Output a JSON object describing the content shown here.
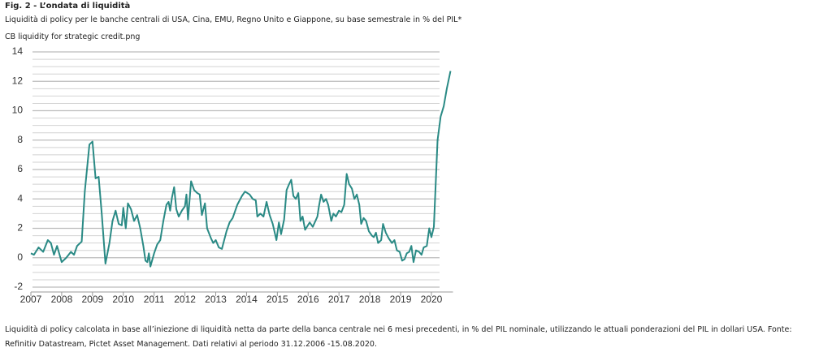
{
  "chart_data": {
    "type": "line",
    "title": "Fig. 2 - L’ondata di liquidità",
    "subtitle": "Liquidità di policy per le banche centrali di USA, Cina, EMU, Regno Unito e Giappone, su base semestrale in % del PIL*",
    "image_name": "CB liquidity for strategic credit.png",
    "footnote": "Liquidità di policy calcolata in base all’iniezione di liquidità netta da parte della banca centrale nei 6 mesi precedenti, in % del PIL nominale, utilizzando le attuali ponderazioni del PIL in dollari USA. Fonte: Refinitiv Datastream, Pictet Asset Management. Dati relativi al periodo 31.12.2006 -15.08.2020.",
    "xlim": [
      2007,
      2020.7
    ],
    "xticks": [
      2007,
      2008,
      2009,
      2010,
      2011,
      2012,
      2013,
      2014,
      2015,
      2016,
      2017,
      2018,
      2019,
      2020
    ],
    "ylim": [
      -2,
      14
    ],
    "yticks": [
      -2,
      0,
      2,
      4,
      6,
      8,
      10,
      12,
      14
    ],
    "minor_yticks": [
      -1.5,
      -1,
      -0.5,
      0.5,
      1,
      1.5,
      2.5,
      3,
      3.5,
      4.5,
      5,
      5.5,
      6.5,
      7,
      7.5,
      8.5,
      9,
      9.5,
      10.5,
      11,
      11.5,
      12.5,
      13,
      13.5
    ],
    "grid": true,
    "series": [
      {
        "color": "#2a8a85",
        "x": [
          2007.0,
          2007.1,
          2007.25,
          2007.4,
          2007.55,
          2007.65,
          2007.75,
          2007.85,
          2008.0,
          2008.15,
          2008.3,
          2008.4,
          2008.5,
          2008.65,
          2008.75,
          2008.9,
          2009.0,
          2009.1,
          2009.2,
          2009.3,
          2009.42,
          2009.55,
          2009.65,
          2009.75,
          2009.85,
          2009.95,
          2010.0,
          2010.08,
          2010.15,
          2010.25,
          2010.35,
          2010.45,
          2010.55,
          2010.65,
          2010.72,
          2010.78,
          2010.83,
          2010.88,
          2011.0,
          2011.1,
          2011.2,
          2011.3,
          2011.4,
          2011.47,
          2011.52,
          2011.58,
          2011.65,
          2011.72,
          2011.8,
          2011.9,
          2012.0,
          2012.05,
          2012.1,
          2012.2,
          2012.3,
          2012.4,
          2012.48,
          2012.55,
          2012.65,
          2012.72,
          2012.85,
          2012.92,
          2013.0,
          2013.1,
          2013.2,
          2013.35,
          2013.45,
          2013.55,
          2013.7,
          2013.85,
          2013.95,
          2014.1,
          2014.2,
          2014.3,
          2014.35,
          2014.45,
          2014.55,
          2014.65,
          2014.75,
          2014.85,
          2014.97,
          2015.05,
          2015.12,
          2015.22,
          2015.3,
          2015.38,
          2015.45,
          2015.52,
          2015.6,
          2015.68,
          2015.75,
          2015.82,
          2015.9,
          2016.05,
          2016.15,
          2016.3,
          2016.35,
          2016.42,
          2016.5,
          2016.58,
          2016.65,
          2016.75,
          2016.82,
          2016.9,
          2017.0,
          2017.08,
          2017.17,
          2017.25,
          2017.33,
          2017.42,
          2017.5,
          2017.58,
          2017.66,
          2017.72,
          2017.8,
          2017.88,
          2017.97,
          2018.07,
          2018.13,
          2018.2,
          2018.27,
          2018.37,
          2018.43,
          2018.52,
          2018.62,
          2018.72,
          2018.8,
          2018.88,
          2018.97,
          2019.05,
          2019.13,
          2019.2,
          2019.28,
          2019.35,
          2019.42,
          2019.5,
          2019.6,
          2019.68,
          2019.75,
          2019.85,
          2019.93,
          2020.0,
          2020.08,
          2020.2,
          2020.3,
          2020.4,
          2020.5,
          2020.62
        ],
        "values": [
          0.3,
          0.2,
          0.7,
          0.4,
          1.2,
          1.0,
          0.2,
          0.8,
          -0.3,
          0,
          0.4,
          0.2,
          0.8,
          1.1,
          4.5,
          7.7,
          7.9,
          5.4,
          5.5,
          3.0,
          -0.4,
          1.0,
          2.5,
          3.2,
          2.3,
          2.2,
          3.4,
          2.0,
          3.7,
          3.3,
          2.5,
          2.9,
          2.0,
          0.8,
          -0.2,
          -0.3,
          0.3,
          -0.6,
          0.3,
          0.9,
          1.2,
          2.5,
          3.6,
          3.8,
          3.2,
          4.1,
          4.8,
          3.3,
          2.8,
          3.2,
          3.5,
          4.3,
          2.6,
          5.2,
          4.6,
          4.4,
          4.3,
          2.9,
          3.7,
          2.0,
          1.3,
          1.0,
          1.2,
          0.7,
          0.6,
          1.8,
          2.4,
          2.7,
          3.6,
          4.2,
          4.5,
          4.3,
          4.0,
          3.9,
          2.8,
          3.0,
          2.8,
          3.8,
          2.9,
          2.3,
          1.2,
          2.4,
          1.6,
          2.6,
          4.6,
          5.0,
          5.3,
          4.2,
          4.0,
          4.4,
          2.5,
          2.8,
          1.9,
          2.4,
          2.1,
          2.8,
          3.5,
          4.3,
          3.8,
          4.0,
          3.6,
          2.5,
          3.0,
          2.8,
          3.2,
          3.1,
          3.6,
          5.7,
          5.0,
          4.7,
          4.0,
          4.3,
          3.6,
          2.3,
          2.7,
          2.5,
          1.8,
          1.5,
          1.4,
          1.7,
          1.0,
          1.2,
          2.3,
          1.7,
          1.3,
          1.0,
          1.2,
          0.5,
          0.4,
          -0.2,
          -0.1,
          0.3,
          0.4,
          0.8,
          -0.3,
          0.5,
          0.4,
          0.2,
          0.7,
          0.8,
          2.0,
          1.4,
          2.1,
          8.0,
          9.6,
          10.3,
          11.5,
          12.7
        ]
      }
    ]
  }
}
